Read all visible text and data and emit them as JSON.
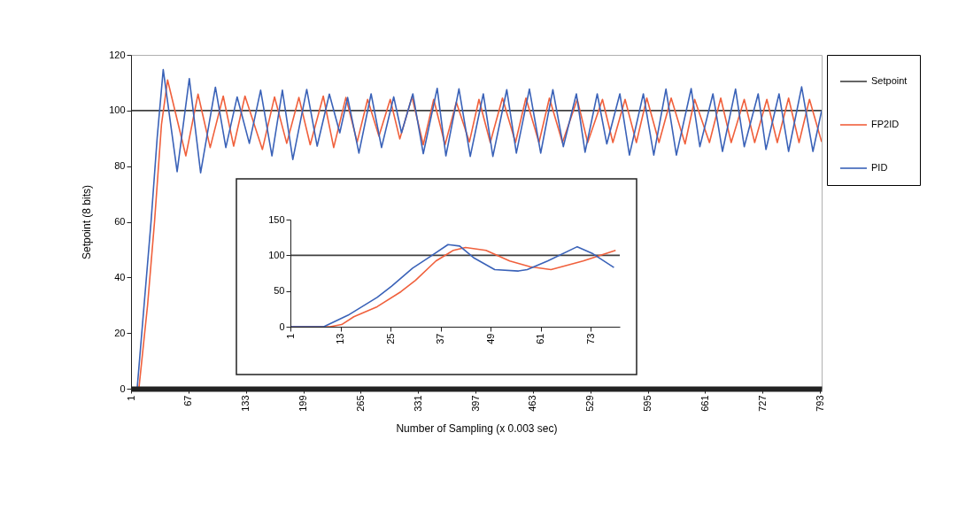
{
  "chart_data": [
    {
      "type": "line",
      "xlabel": "Number of Sampling   (x 0.003  sec)",
      "ylabel": "Setpoint  (8 bits)",
      "xlim": [
        1,
        795
      ],
      "xticks": [
        1,
        67,
        133,
        199,
        265,
        331,
        397,
        463,
        529,
        595,
        661,
        727,
        793
      ],
      "ylim": [
        0,
        120
      ],
      "yticks": [
        0,
        20,
        40,
        60,
        80,
        100,
        120
      ],
      "grid": false,
      "legend": "right",
      "marker": "none",
      "series": [
        {
          "name": "Setpoint",
          "color": "#404040",
          "x": [
            1,
            795
          ],
          "values": [
            100,
            100
          ]
        },
        {
          "name": "FP2ID",
          "color": "#f0603c",
          "x": [
            1,
            10,
            20,
            28,
            36,
            43,
            64,
            78,
            92,
            107,
            119,
            132,
            152,
            166,
            180,
            194,
            207,
            222,
            234,
            248,
            261,
            273,
            286,
            299,
            310,
            324,
            337,
            349,
            362,
            375,
            390,
            401,
            414,
            428,
            443,
            455,
            470,
            482,
            497,
            514,
            526,
            543,
            555,
            569,
            582,
            594,
            608,
            622,
            638,
            649,
            666,
            679,
            691,
            706,
            718,
            732,
            744,
            757,
            769,
            781,
            795
          ],
          "values": [
            0,
            0,
            30,
            60,
            95,
            111,
            83.7,
            105.9,
            86.7,
            105.2,
            87.2,
            105.2,
            86,
            104.9,
            88.2,
            104.7,
            87.7,
            105.2,
            86.7,
            104.7,
            88.7,
            104,
            90.8,
            104,
            89.8,
            104.9,
            87.7,
            104,
            87.7,
            103,
            88.7,
            104,
            88.5,
            104.5,
            88.5,
            104.5,
            88.5,
            104.5,
            88.5,
            104,
            88.5,
            104,
            88.5,
            104,
            88.5,
            104.5,
            88.5,
            104.5,
            88,
            104,
            88.5,
            104.5,
            88.5,
            104,
            88.5,
            104,
            88.5,
            104.5,
            88.5,
            104,
            88.7
          ]
        },
        {
          "name": "PID",
          "color": "#3a62b8",
          "x": [
            1,
            8,
            16,
            24,
            31,
            38,
            54,
            68,
            81,
            98,
            110,
            123,
            137,
            150,
            163,
            175,
            187,
            203,
            215,
            229,
            241,
            250,
            263,
            277,
            289,
            303,
            312,
            325,
            337,
            353,
            363,
            378,
            391,
            406,
            417,
            433,
            444,
            459,
            472,
            486,
            498,
            513,
            523,
            537,
            548,
            563,
            574,
            590,
            602,
            616,
            628,
            645,
            655,
            670,
            681,
            696,
            706,
            722,
            731,
            746,
            757,
            772,
            785,
            795
          ],
          "values": [
            0,
            0,
            30,
            60,
            90,
            114.7,
            78,
            111.5,
            77.6,
            108.4,
            86.7,
            104.9,
            88.2,
            107.3,
            83.7,
            107.3,
            82.4,
            107.6,
            87.2,
            105.9,
            92,
            104.7,
            84.7,
            106,
            86.7,
            104.9,
            92,
            106,
            84.5,
            108,
            83.7,
            107.8,
            83.5,
            106,
            83.5,
            107.5,
            84.7,
            107.7,
            84.7,
            107.5,
            87,
            106,
            85,
            106,
            88,
            106,
            84,
            106,
            84,
            107.7,
            84,
            107.9,
            87,
            106,
            85.3,
            107.7,
            87,
            106,
            86,
            106,
            85.3,
            108.5,
            85.3,
            100
          ]
        }
      ]
    },
    {
      "type": "line",
      "xlim": [
        1,
        80
      ],
      "xticks": [
        1,
        13,
        25,
        37,
        49,
        61,
        73
      ],
      "ylim": [
        0,
        150
      ],
      "yticks": [
        0,
        50,
        100,
        150
      ],
      "grid": false,
      "marker": "none",
      "series": [
        {
          "color": "#404040",
          "x": [
            1,
            80
          ],
          "values": [
            100,
            100
          ]
        },
        {
          "color": "#f0603c",
          "x": [
            1,
            10.5,
            13.3,
            16.2,
            21.8,
            27.5,
            31,
            35.9,
            40.1,
            43,
            47.9,
            53.6,
            58.5,
            63.5,
            71.2,
            76.9,
            79
          ],
          "values": [
            0,
            0,
            3,
            14,
            28,
            49,
            65,
            92,
            107,
            111,
            107,
            92,
            84,
            80,
            92,
            103,
            107
          ]
        },
        {
          "color": "#3a62b8",
          "x": [
            1,
            9,
            14.8,
            21.8,
            25.3,
            30.3,
            34.5,
            38.8,
            41.6,
            45.1,
            50,
            55.7,
            57.8,
            62.7,
            69.8,
            73.3,
            78.6
          ],
          "values": [
            0,
            0,
            16,
            41,
            57,
            82,
            98,
            115,
            113,
            96,
            80,
            78,
            80,
            92,
            112,
            103,
            83
          ]
        }
      ]
    }
  ]
}
